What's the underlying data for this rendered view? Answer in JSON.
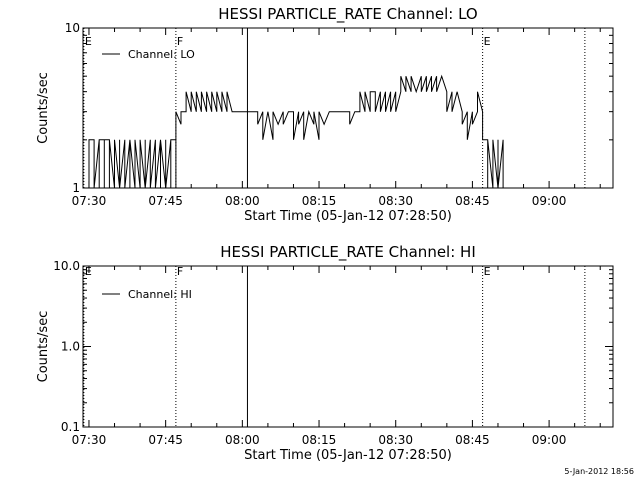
{
  "footer": {
    "timestamp": "5-Jan-2012 18:56"
  },
  "chart_data": [
    {
      "type": "line",
      "title": "HESSI PARTICLE_RATE Channel: LO",
      "xlabel": "Start Time (05-Jan-12 07:28:50)",
      "ylabel": "Counts/sec",
      "x_range": [
        "07:28:50",
        "09:12:30"
      ],
      "ylim": [
        1,
        10
      ],
      "y_scale": "log",
      "xticks": [
        "07:30",
        "07:45",
        "08:00",
        "08:15",
        "08:30",
        "08:45",
        "09:00"
      ],
      "yticks": [
        "1",
        "10"
      ],
      "legend": {
        "position": "top-left",
        "label": "Channel: LO"
      },
      "markers": [
        {
          "time": "07:29",
          "label": "E",
          "style": "dotted"
        },
        {
          "time": "07:47",
          "label": "F",
          "style": "dotted"
        },
        {
          "time": "08:01",
          "label": "",
          "style": "solid"
        },
        {
          "time": "08:47",
          "label": "E",
          "style": "dotted"
        },
        {
          "time": "09:07",
          "label": "",
          "style": "dotted"
        }
      ],
      "series": [
        {
          "values": [
            [
              "07:30",
              1
            ],
            [
              "07:30",
              2
            ],
            [
              "07:31",
              2
            ],
            [
              "07:31",
              1
            ],
            [
              "07:31",
              2
            ],
            [
              "07:31",
              1
            ],
            [
              "07:32",
              2
            ],
            [
              "07:32",
              1
            ],
            [
              "07:32",
              2
            ],
            [
              "07:33",
              2
            ],
            [
              "07:33",
              1
            ],
            [
              "07:33",
              2
            ],
            [
              "07:34",
              2
            ],
            [
              "07:34",
              1
            ],
            [
              "07:34",
              2
            ],
            [
              "07:35",
              1
            ],
            [
              "07:35",
              2
            ],
            [
              "07:36",
              1
            ],
            [
              "07:36",
              2
            ],
            [
              "07:36",
              1
            ],
            [
              "07:37",
              2
            ],
            [
              "07:37",
              2
            ],
            [
              "07:37",
              1
            ],
            [
              "07:38",
              2
            ],
            [
              "07:38",
              1
            ],
            [
              "07:38",
              2
            ],
            [
              "07:39",
              1
            ],
            [
              "07:39",
              2
            ],
            [
              "07:39",
              2
            ],
            [
              "07:40",
              1
            ],
            [
              "07:40",
              2
            ],
            [
              "07:41",
              1
            ],
            [
              "07:41",
              2
            ],
            [
              "07:41",
              1
            ],
            [
              "07:42",
              2
            ],
            [
              "07:42",
              1
            ],
            [
              "07:43",
              2
            ],
            [
              "07:43",
              1
            ],
            [
              "07:44",
              2
            ],
            [
              "07:44",
              1
            ],
            [
              "07:44",
              2
            ],
            [
              "07:45",
              1
            ],
            [
              "07:45",
              2
            ],
            [
              "07:45",
              1
            ],
            [
              "07:46",
              2
            ],
            [
              "07:46",
              1
            ],
            [
              "07:46",
              2
            ],
            [
              "07:47",
              2
            ],
            [
              "07:47",
              1
            ],
            [
              "07:47",
              2
            ],
            [
              "07:47",
              3
            ],
            [
              "07:48",
              2.5
            ],
            [
              "07:48",
              3
            ],
            [
              "07:49",
              3
            ],
            [
              "07:49",
              4
            ],
            [
              "07:50",
              3
            ],
            [
              "07:50",
              4
            ],
            [
              "07:51",
              3
            ],
            [
              "07:51",
              4
            ],
            [
              "07:52",
              3
            ],
            [
              "07:52",
              4
            ],
            [
              "07:53",
              3
            ],
            [
              "07:53",
              4
            ],
            [
              "07:54",
              3
            ],
            [
              "07:54",
              4
            ],
            [
              "07:55",
              3
            ],
            [
              "07:55",
              4
            ],
            [
              "07:56",
              3
            ],
            [
              "07:56",
              4
            ],
            [
              "07:57",
              3
            ],
            [
              "07:57",
              4
            ],
            [
              "07:58",
              3
            ],
            [
              "07:58",
              3
            ],
            [
              "07:59",
              3
            ],
            [
              "08:02",
              3
            ],
            [
              "08:03",
              3
            ],
            [
              "08:03",
              2.5
            ],
            [
              "08:04",
              3
            ],
            [
              "08:04",
              2
            ],
            [
              "08:05",
              3
            ],
            [
              "08:06",
              2
            ],
            [
              "08:06",
              3
            ],
            [
              "08:07",
              2.5
            ],
            [
              "08:08",
              3
            ],
            [
              "08:08",
              2.5
            ],
            [
              "08:09",
              3
            ],
            [
              "08:10",
              3
            ],
            [
              "08:10",
              2
            ],
            [
              "08:11",
              3
            ],
            [
              "08:11",
              2.5
            ],
            [
              "08:12",
              3
            ],
            [
              "08:12",
              2
            ],
            [
              "08:13",
              3
            ],
            [
              "08:14",
              2.5
            ],
            [
              "08:14",
              3
            ],
            [
              "08:15",
              2
            ],
            [
              "08:15",
              3
            ],
            [
              "08:16",
              2.5
            ],
            [
              "08:17",
              3
            ],
            [
              "08:18",
              3
            ],
            [
              "08:19",
              3
            ],
            [
              "08:21",
              3
            ],
            [
              "08:21",
              2.5
            ],
            [
              "08:22",
              3
            ],
            [
              "08:23",
              3
            ],
            [
              "08:23",
              4
            ],
            [
              "08:24",
              3
            ],
            [
              "08:24",
              4
            ],
            [
              "08:25",
              3
            ],
            [
              "08:25",
              4
            ],
            [
              "08:26",
              4
            ],
            [
              "08:26",
              3
            ],
            [
              "08:27",
              4
            ],
            [
              "08:27",
              3
            ],
            [
              "08:28",
              4
            ],
            [
              "08:28",
              3
            ],
            [
              "08:29",
              4
            ],
            [
              "08:29",
              3
            ],
            [
              "08:30",
              4
            ],
            [
              "08:30",
              3
            ],
            [
              "08:31",
              4
            ],
            [
              "08:31",
              5
            ],
            [
              "08:32",
              4
            ],
            [
              "08:32",
              5
            ],
            [
              "08:33",
              4
            ],
            [
              "08:33",
              5
            ],
            [
              "08:34",
              4
            ],
            [
              "08:35",
              5
            ],
            [
              "08:35",
              4
            ],
            [
              "08:36",
              5
            ],
            [
              "08:36",
              4
            ],
            [
              "08:37",
              5
            ],
            [
              "08:37",
              4
            ],
            [
              "08:38",
              5
            ],
            [
              "08:38",
              4
            ],
            [
              "08:39",
              5
            ],
            [
              "08:40",
              4
            ],
            [
              "08:40",
              3
            ],
            [
              "08:41",
              4
            ],
            [
              "08:41",
              3
            ],
            [
              "08:42",
              4
            ],
            [
              "08:43",
              3
            ],
            [
              "08:43",
              2.5
            ],
            [
              "08:44",
              3
            ],
            [
              "08:44",
              2
            ],
            [
              "08:45",
              3
            ],
            [
              "08:45",
              2.5
            ],
            [
              "08:46",
              3
            ],
            [
              "08:46",
              4
            ],
            [
              "08:47",
              3
            ],
            [
              "08:47",
              2
            ],
            [
              "08:48",
              2
            ],
            [
              "08:48",
              1
            ],
            [
              "08:48",
              2
            ],
            [
              "08:49",
              1
            ],
            [
              "08:49",
              2
            ],
            [
              "08:50",
              1
            ],
            [
              "08:50",
              2
            ],
            [
              "08:50",
              1
            ],
            [
              "08:51",
              2
            ],
            [
              "08:51",
              1
            ],
            [
              "08:52",
              1
            ]
          ]
        }
      ]
    },
    {
      "type": "line",
      "title": "HESSI PARTICLE_RATE Channel: HI",
      "xlabel": "Start Time (05-Jan-12 07:28:50)",
      "ylabel": "Counts/sec",
      "x_range": [
        "07:28:50",
        "09:12:30"
      ],
      "ylim": [
        0.1,
        10
      ],
      "y_scale": "log",
      "xticks": [
        "07:30",
        "07:45",
        "08:00",
        "08:15",
        "08:30",
        "08:45",
        "09:00"
      ],
      "yticks": [
        "0.1",
        "1.0",
        "10.0"
      ],
      "legend": {
        "position": "top-left",
        "label": "Channel: HI"
      },
      "markers": [
        {
          "time": "07:29",
          "label": "E",
          "style": "dotted"
        },
        {
          "time": "07:47",
          "label": "F",
          "style": "dotted"
        },
        {
          "time": "08:01",
          "label": "",
          "style": "solid"
        },
        {
          "time": "08:47",
          "label": "E",
          "style": "dotted"
        },
        {
          "time": "09:07",
          "label": "",
          "style": "dotted"
        }
      ],
      "series": [
        {
          "values": []
        }
      ]
    }
  ]
}
